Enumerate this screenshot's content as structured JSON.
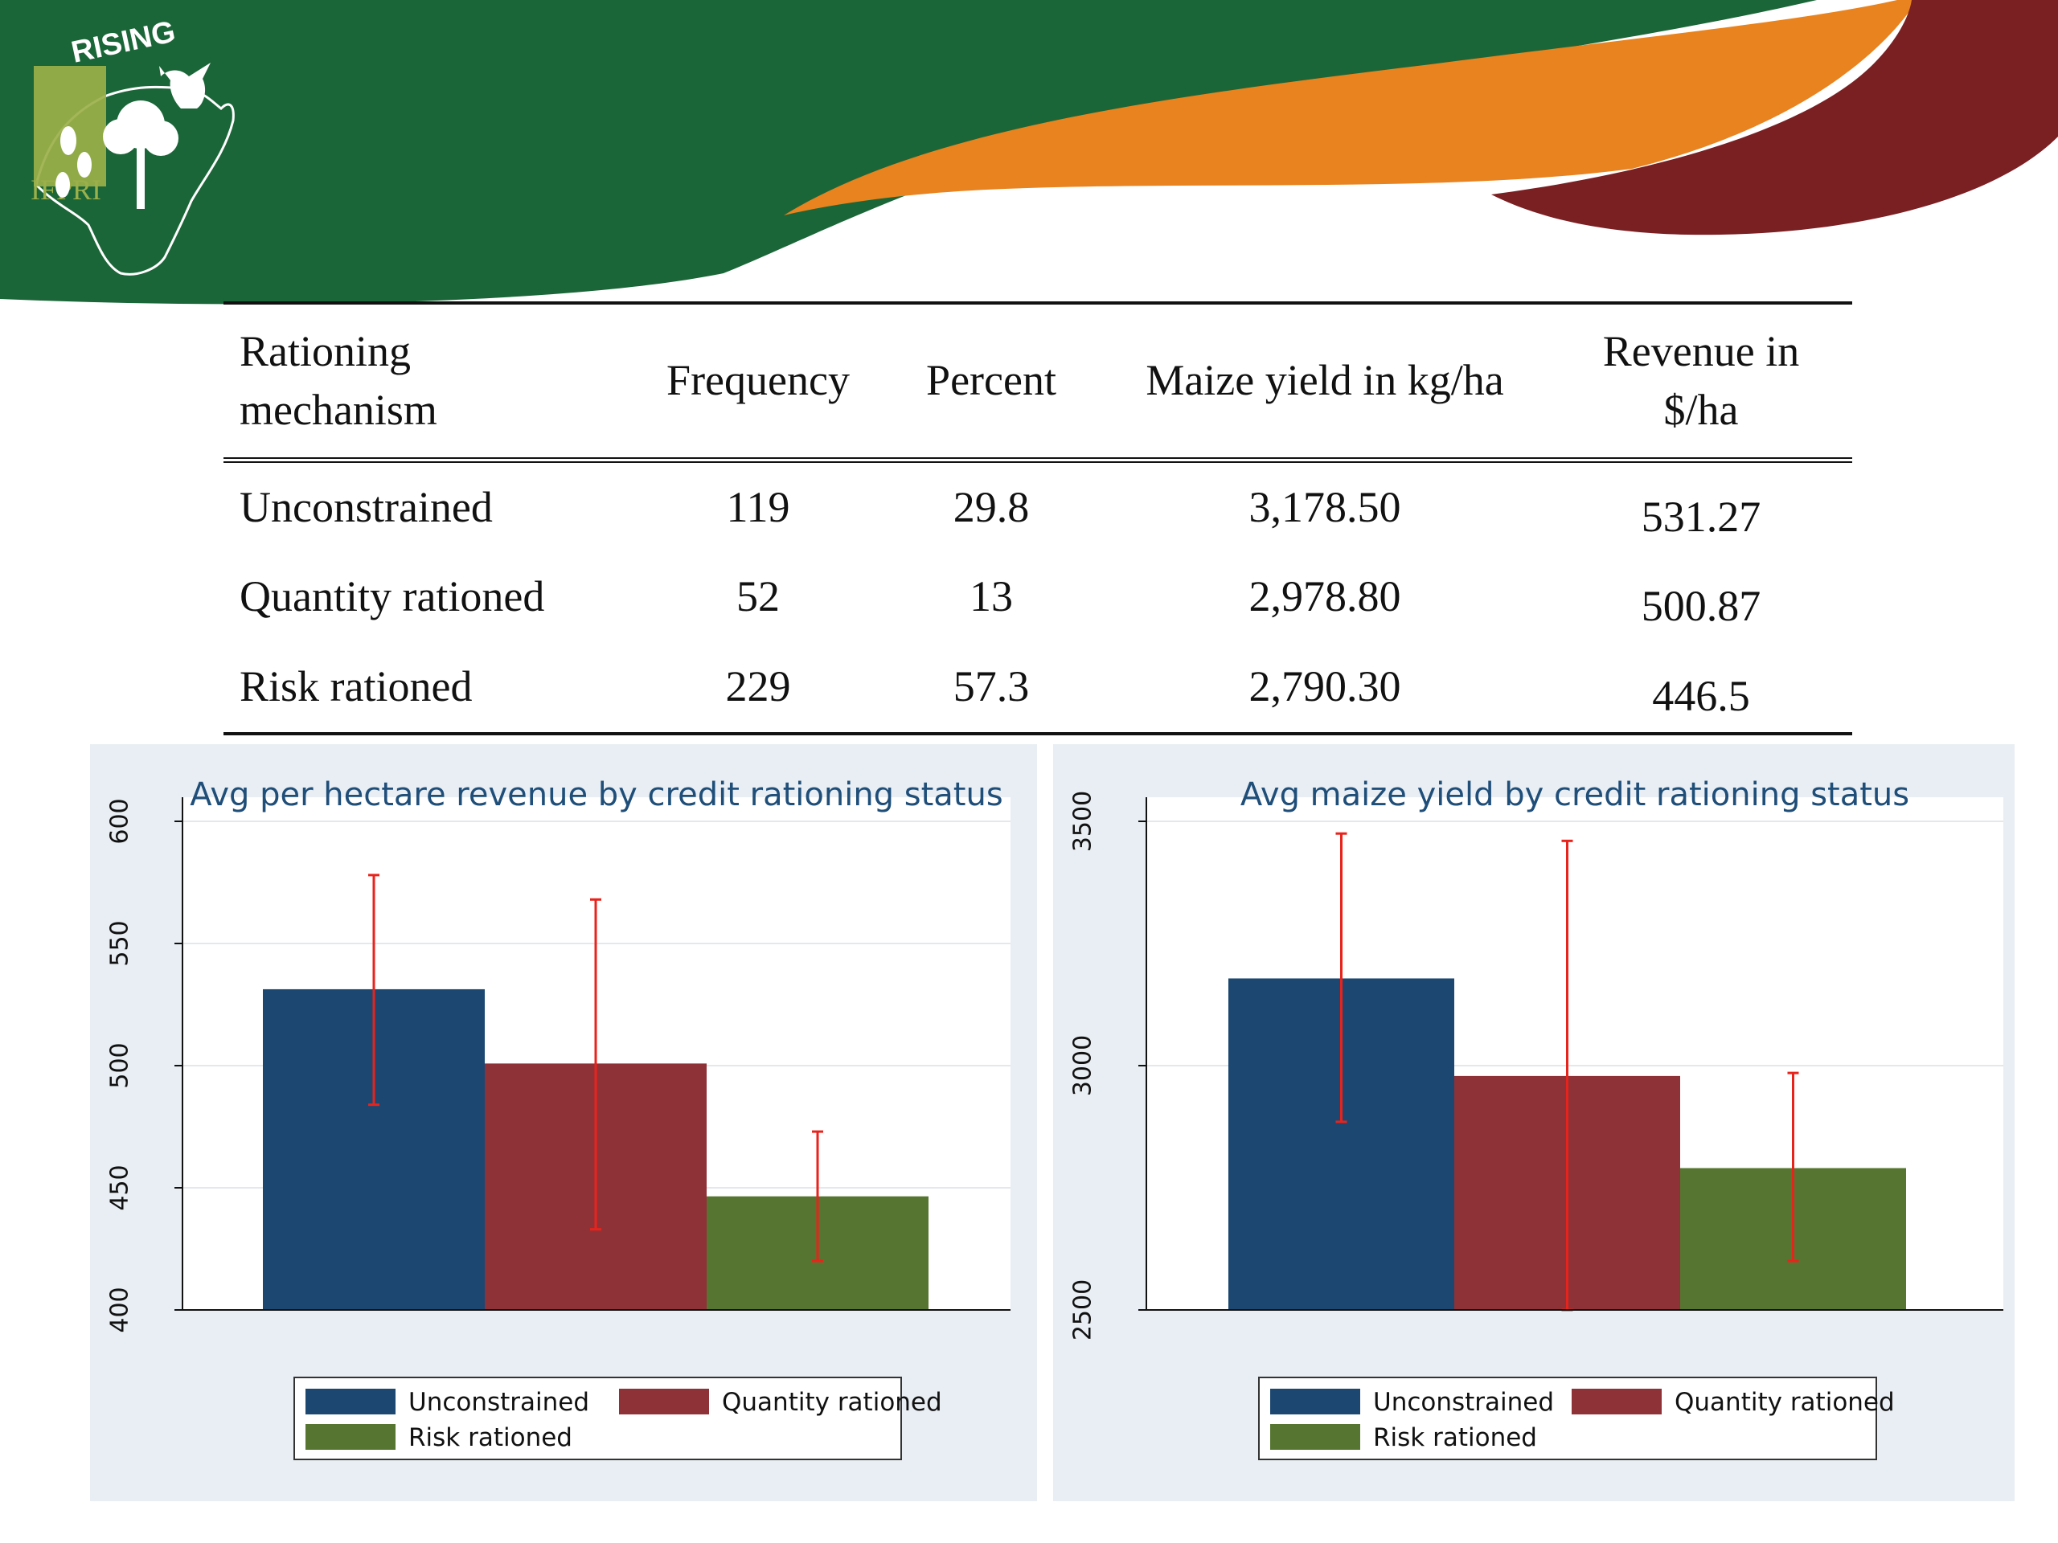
{
  "branding": {
    "logo_rising": "RISING",
    "logo_org": "IFPRI",
    "colors": {
      "green": "#1b6638",
      "orange": "#e8831f",
      "maroon": "#7a1f22",
      "olive": "#9bb04a"
    }
  },
  "table": {
    "headers": [
      "Rationing mechanism",
      "Frequency",
      "Percent",
      "Maize yield in kg/ha",
      "Revenue in $/ha"
    ],
    "header_line1": "Rationing",
    "header_line2": "mechanism",
    "rows": [
      {
        "mechanism": "Unconstrained",
        "frequency": "119",
        "percent": "29.8",
        "yield": "3,178.50",
        "revenue": "531.27"
      },
      {
        "mechanism": "Quantity rationed",
        "frequency": "52",
        "percent": "13",
        "yield": "2,978.80",
        "revenue": "500.87"
      },
      {
        "mechanism": "Risk rationed",
        "frequency": "229",
        "percent": "57.3",
        "yield": "2,790.30",
        "revenue": "446.5"
      }
    ]
  },
  "chart_data": [
    {
      "type": "bar",
      "title": "Avg per hectare revenue by credit rationing status",
      "xlabel": "",
      "ylabel": "",
      "ylim": [
        400,
        600
      ],
      "yticks": [
        400,
        450,
        500,
        550,
        600
      ],
      "grid": true,
      "legend_position": "bottom",
      "categories": [
        "Unconstrained",
        "Quantity rationed",
        "Risk rationed"
      ],
      "values": [
        531.27,
        500.87,
        446.5
      ],
      "error_low": [
        484,
        433,
        420
      ],
      "error_high": [
        578,
        568,
        473
      ],
      "colors": [
        "#1c4770",
        "#8f3237",
        "#567530"
      ],
      "error_color": "#e8231c"
    },
    {
      "type": "bar",
      "title": "Avg maize yield by credit rationing status",
      "xlabel": "",
      "ylabel": "",
      "ylim": [
        2500,
        3500
      ],
      "yticks": [
        2500,
        3000,
        3500
      ],
      "grid": true,
      "legend_position": "bottom",
      "categories": [
        "Unconstrained",
        "Quantity rationed",
        "Risk rationed"
      ],
      "values": [
        3178.5,
        2978.8,
        2790.3
      ],
      "error_low": [
        2885,
        2500,
        2600
      ],
      "error_high": [
        3475,
        3460,
        2985
      ],
      "colors": [
        "#1c4770",
        "#8f3237",
        "#567530"
      ],
      "error_color": "#e8231c"
    }
  ]
}
